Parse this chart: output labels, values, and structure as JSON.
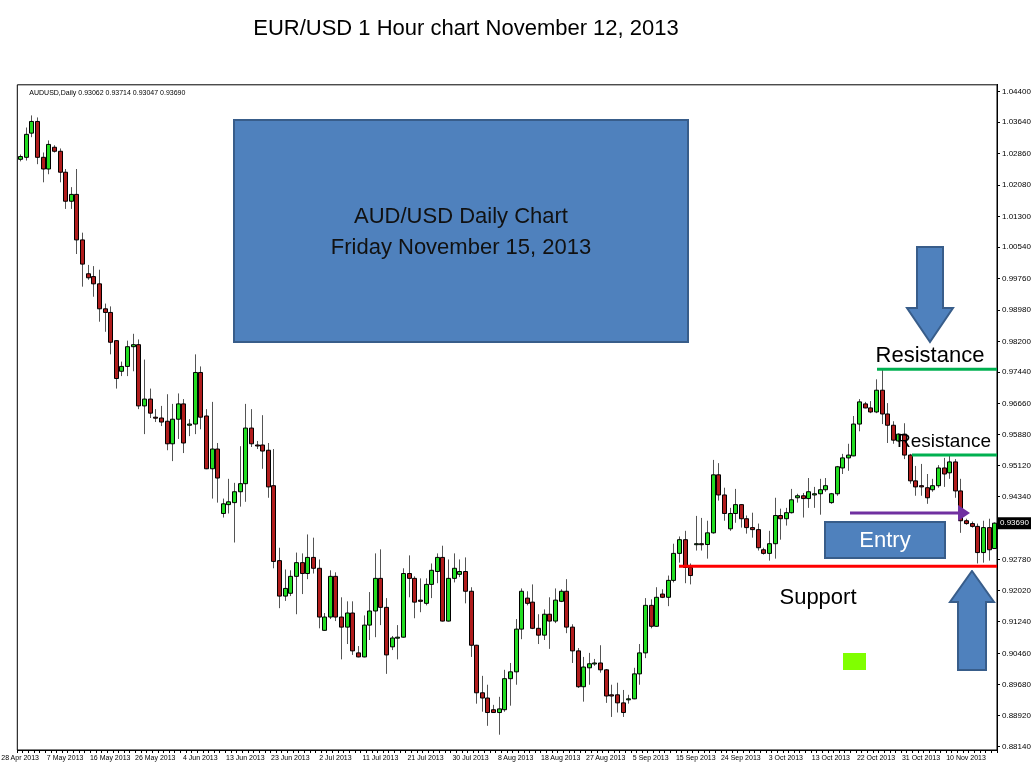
{
  "chart_data": {
    "type": "candlestick",
    "title": "EUR/USD 1 Hour chart November 12, 2013",
    "subtitle": "AUD/USD Daily Chart\nFriday November 15, 2013",
    "categories": [
      "28 Apr 2013",
      null,
      null,
      null,
      null,
      null,
      null,
      null,
      "7 May 2013",
      null,
      null,
      null,
      null,
      null,
      null,
      null,
      "16 May 2013",
      null,
      null,
      null,
      null,
      null,
      null,
      null,
      "26 May 2013",
      null,
      null,
      null,
      null,
      null,
      null,
      null,
      "4 Jun 2013",
      null,
      null,
      null,
      null,
      null,
      null,
      null,
      "13 Jun 2013",
      null,
      null,
      null,
      null,
      null,
      null,
      null,
      "23 Jun 2013",
      null,
      null,
      null,
      null,
      null,
      null,
      null,
      "2 Jul 2013",
      null,
      null,
      null,
      null,
      null,
      null,
      null,
      "11 Jul 2013",
      null,
      null,
      null,
      null,
      null,
      null,
      null,
      "21 Jul 2013",
      null,
      null,
      null,
      null,
      null,
      null,
      null,
      "30 Jul 2013",
      null,
      null,
      null,
      null,
      null,
      null,
      null,
      "8 Aug 2013",
      null,
      null,
      null,
      null,
      null,
      null,
      null,
      "18 Aug 2013",
      null,
      null,
      null,
      null,
      null,
      null,
      null,
      "27 Aug 2013",
      null,
      null,
      null,
      null,
      null,
      null,
      null,
      "5 Sep 2013",
      null,
      null,
      null,
      null,
      null,
      null,
      null,
      "15 Sep 2013",
      null,
      null,
      null,
      null,
      null,
      null,
      null,
      "24 Sep 2013",
      null,
      null,
      null,
      null,
      null,
      null,
      null,
      "3 Oct 2013",
      null,
      null,
      null,
      null,
      null,
      null,
      null,
      "13 Oct 2013",
      null,
      null,
      null,
      null,
      null,
      null,
      null,
      "22 Oct 2013",
      null,
      null,
      null,
      null,
      null,
      null,
      null,
      "31 Oct 2013",
      null,
      null,
      null,
      null,
      null,
      null,
      null,
      "10 Nov 2013",
      null,
      null,
      null,
      null,
      null
    ],
    "ohlc": [
      [
        1.0272,
        1.0284,
        1.0267,
        1.0279
      ],
      [
        1.0277,
        1.0351,
        1.0269,
        1.0334
      ],
      [
        1.0337,
        1.0381,
        1.0327,
        1.0366
      ],
      [
        1.0366,
        1.0376,
        1.026,
        1.0277
      ],
      [
        1.0277,
        1.0289,
        1.0215,
        1.0248
      ],
      [
        1.0248,
        1.0319,
        1.0235,
        1.0309
      ],
      [
        1.0302,
        1.0307,
        1.0289,
        1.0292
      ],
      [
        1.0292,
        1.0299,
        1.0215,
        1.024
      ],
      [
        1.024,
        1.0248,
        1.0149,
        1.0168
      ],
      [
        1.0168,
        1.0203,
        1.0149,
        1.0185
      ],
      [
        1.0185,
        1.0248,
        1.0037,
        1.0072
      ],
      [
        1.0072,
        1.009,
        0.9956,
        1.0012
      ],
      [
        0.9988,
        1.001,
        0.9973,
        0.9978
      ],
      [
        0.9981,
        1.0007,
        0.9931,
        0.9963
      ],
      [
        0.9963,
        0.9998,
        0.9869,
        0.9901
      ],
      [
        0.9901,
        0.9914,
        0.9844,
        0.9892
      ],
      [
        0.9892,
        0.9907,
        0.9788,
        0.9818
      ],
      [
        0.9822,
        0.9823,
        0.9703,
        0.9728
      ],
      [
        0.9746,
        0.977,
        0.9734,
        0.9758
      ],
      [
        0.9758,
        0.9822,
        0.9734,
        0.9807
      ],
      [
        0.9807,
        0.9839,
        0.9746,
        0.9812
      ],
      [
        0.9812,
        0.9825,
        0.9652,
        0.966
      ],
      [
        0.966,
        0.9775,
        0.959,
        0.9677
      ],
      [
        0.9677,
        0.9703,
        0.963,
        0.9642
      ],
      [
        0.9632,
        0.9652,
        0.962,
        0.963
      ],
      [
        0.963,
        0.966,
        0.961,
        0.962
      ],
      [
        0.9622,
        0.9689,
        0.955,
        0.9566
      ],
      [
        0.9566,
        0.9665,
        0.9523,
        0.9627
      ],
      [
        0.9627,
        0.9691,
        0.9578,
        0.9665
      ],
      [
        0.9665,
        0.9677,
        0.9543,
        0.9568
      ],
      [
        0.9612,
        0.9627,
        0.9585,
        0.9615
      ],
      [
        0.9615,
        0.9788,
        0.959,
        0.9743
      ],
      [
        0.9743,
        0.9758,
        0.9602,
        0.9632
      ],
      [
        0.9635,
        0.9652,
        0.9503,
        0.9504
      ],
      [
        0.9504,
        0.967,
        0.943,
        0.9553
      ],
      [
        0.9553,
        0.9568,
        0.942,
        0.9481
      ],
      [
        0.9393,
        0.943,
        0.9383,
        0.9417
      ],
      [
        0.9415,
        0.9479,
        0.9393,
        0.9422
      ],
      [
        0.942,
        0.9469,
        0.9321,
        0.9447
      ],
      [
        0.9447,
        0.956,
        0.941,
        0.9467
      ],
      [
        0.9467,
        0.9665,
        0.9422,
        0.9605
      ],
      [
        0.9605,
        0.9652,
        0.9558,
        0.9566
      ],
      [
        0.9563,
        0.9573,
        0.9553,
        0.9561
      ],
      [
        0.9563,
        0.9637,
        0.9504,
        0.9548
      ],
      [
        0.955,
        0.9568,
        0.9432,
        0.9459
      ],
      [
        0.9462,
        0.9553,
        0.9257,
        0.9274
      ],
      [
        0.9276,
        0.9308,
        0.9158,
        0.9188
      ],
      [
        0.9188,
        0.9254,
        0.9176,
        0.9207
      ],
      [
        0.9195,
        0.9252,
        0.9188,
        0.9237
      ],
      [
        0.9237,
        0.9296,
        0.9143,
        0.9271
      ],
      [
        0.9271,
        0.9294,
        0.9193,
        0.9244
      ],
      [
        0.9244,
        0.9341,
        0.923,
        0.9284
      ],
      [
        0.9284,
        0.9333,
        0.9244,
        0.9257
      ],
      [
        0.9257,
        0.9279,
        0.9108,
        0.9136
      ],
      [
        0.9103,
        0.9146,
        0.9102,
        0.9136
      ],
      [
        0.9136,
        0.9252,
        0.9131,
        0.9237
      ],
      [
        0.9237,
        0.9247,
        0.9126,
        0.9136
      ],
      [
        0.9136,
        0.9185,
        0.9031,
        0.9111
      ],
      [
        0.9111,
        0.9175,
        0.9069,
        0.9146
      ],
      [
        0.9146,
        0.9175,
        0.9042,
        0.9052
      ],
      [
        0.9047,
        0.9064,
        0.9036,
        0.9037
      ],
      [
        0.9037,
        0.914,
        0.9036,
        0.9116
      ],
      [
        0.9116,
        0.9198,
        0.9079,
        0.9151
      ],
      [
        0.9151,
        0.9294,
        0.9086,
        0.9232
      ],
      [
        0.9232,
        0.9304,
        0.9116,
        0.916
      ],
      [
        0.916,
        0.9183,
        0.8995,
        0.9042
      ],
      [
        0.9062,
        0.9089,
        0.9054,
        0.9084
      ],
      [
        0.9084,
        0.9116,
        0.9031,
        0.9086
      ],
      [
        0.9086,
        0.9257,
        0.9085,
        0.9244
      ],
      [
        0.9244,
        0.9289,
        0.9185,
        0.9232
      ],
      [
        0.9232,
        0.9237,
        0.9133,
        0.9173
      ],
      [
        0.9178,
        0.9232,
        0.9148,
        0.9175
      ],
      [
        0.917,
        0.9232,
        0.9165,
        0.9217
      ],
      [
        0.9217,
        0.9269,
        0.9183,
        0.9252
      ],
      [
        0.9249,
        0.9294,
        0.922,
        0.9284
      ],
      [
        0.9284,
        0.9313,
        0.9125,
        0.9126
      ],
      [
        0.9126,
        0.9279,
        0.9125,
        0.9232
      ],
      [
        0.9232,
        0.9294,
        0.9222,
        0.9257
      ],
      [
        0.9242,
        0.9279,
        0.9235,
        0.9249
      ],
      [
        0.9249,
        0.9284,
        0.917,
        0.92
      ],
      [
        0.92,
        0.921,
        0.9037,
        0.9066
      ],
      [
        0.9066,
        0.9067,
        0.8921,
        0.8948
      ],
      [
        0.8948,
        0.899,
        0.8901,
        0.8935
      ],
      [
        0.8935,
        0.8968,
        0.8866,
        0.8899
      ],
      [
        0.8906,
        0.8918,
        0.8898,
        0.8899
      ],
      [
        0.8899,
        0.8938,
        0.8844,
        0.8908
      ],
      [
        0.8906,
        0.9005,
        0.8901,
        0.8983
      ],
      [
        0.8983,
        0.9022,
        0.8916,
        0.9
      ],
      [
        0.9,
        0.9131,
        0.8968,
        0.9106
      ],
      [
        0.9106,
        0.9207,
        0.9081,
        0.92
      ],
      [
        0.9183,
        0.92,
        0.9165,
        0.917
      ],
      [
        0.9173,
        0.9217,
        0.9106,
        0.9108
      ],
      [
        0.9108,
        0.9143,
        0.9069,
        0.9091
      ],
      [
        0.9091,
        0.9155,
        0.9079,
        0.9143
      ],
      [
        0.9143,
        0.9185,
        0.9057,
        0.9126
      ],
      [
        0.9126,
        0.9207,
        0.9121,
        0.9178
      ],
      [
        0.9175,
        0.9205,
        0.9173,
        0.92
      ],
      [
        0.92,
        0.923,
        0.9096,
        0.9111
      ],
      [
        0.9111,
        0.9118,
        0.9022,
        0.9052
      ],
      [
        0.9052,
        0.9059,
        0.896,
        0.8963
      ],
      [
        0.8963,
        0.9037,
        0.8926,
        0.9012
      ],
      [
        0.901,
        0.9047,
        0.8968,
        0.902
      ],
      [
        0.902,
        0.9032,
        0.9015,
        0.9022
      ],
      [
        0.9022,
        0.9066,
        0.8998,
        0.9005
      ],
      [
        0.9005,
        0.9007,
        0.8923,
        0.894
      ],
      [
        0.8943,
        0.8968,
        0.8888,
        0.894
      ],
      [
        0.8943,
        0.8973,
        0.8899,
        0.8923
      ],
      [
        0.8923,
        0.8955,
        0.8888,
        0.8899
      ],
      [
        0.8931,
        0.8943,
        0.8921,
        0.8933
      ],
      [
        0.8933,
        0.901,
        0.8932,
        0.8995
      ],
      [
        0.8995,
        0.9069,
        0.8968,
        0.9047
      ],
      [
        0.9047,
        0.9183,
        0.9034,
        0.9165
      ],
      [
        0.9165,
        0.918,
        0.9108,
        0.9113
      ],
      [
        0.9113,
        0.921,
        0.9112,
        0.9185
      ],
      [
        0.9193,
        0.9205,
        0.9183,
        0.9185
      ],
      [
        0.9185,
        0.9239,
        0.9163,
        0.9227
      ],
      [
        0.9227,
        0.9318,
        0.9222,
        0.9294
      ],
      [
        0.9294,
        0.9336,
        0.9271,
        0.9328
      ],
      [
        0.9328,
        0.935,
        0.922,
        0.9259
      ],
      [
        0.9259,
        0.9269,
        0.9217,
        0.9239
      ],
      [
        0.9316,
        0.9387,
        0.9301,
        0.9318
      ],
      [
        0.9318,
        0.9382,
        0.9301,
        0.9316
      ],
      [
        0.9316,
        0.9375,
        0.9281,
        0.9345
      ],
      [
        0.9345,
        0.9526,
        0.9343,
        0.9489
      ],
      [
        0.9489,
        0.9518,
        0.9425,
        0.9439
      ],
      [
        0.9439,
        0.9457,
        0.9375,
        0.9393
      ],
      [
        0.9355,
        0.9407,
        0.935,
        0.9393
      ],
      [
        0.9393,
        0.9454,
        0.937,
        0.9415
      ],
      [
        0.9415,
        0.9416,
        0.9358,
        0.938
      ],
      [
        0.938,
        0.9388,
        0.9343,
        0.9358
      ],
      [
        0.9358,
        0.9395,
        0.9333,
        0.9353
      ],
      [
        0.9353,
        0.9368,
        0.9301,
        0.9308
      ],
      [
        0.9303,
        0.9308,
        0.9291,
        0.9294
      ],
      [
        0.9294,
        0.935,
        0.9276,
        0.9318
      ],
      [
        0.9318,
        0.9432,
        0.9281,
        0.9388
      ],
      [
        0.9388,
        0.9405,
        0.9328,
        0.938
      ],
      [
        0.938,
        0.9407,
        0.9363,
        0.9395
      ],
      [
        0.9395,
        0.9454,
        0.9393,
        0.9427
      ],
      [
        0.9432,
        0.9442,
        0.942,
        0.9437
      ],
      [
        0.9437,
        0.9444,
        0.9383,
        0.943
      ],
      [
        0.943,
        0.9481,
        0.9407,
        0.9447
      ],
      [
        0.9439,
        0.9459,
        0.9407,
        0.9442
      ],
      [
        0.9442,
        0.9479,
        0.939,
        0.9452
      ],
      [
        0.9452,
        0.9481,
        0.9447,
        0.9462
      ],
      [
        0.942,
        0.9444,
        0.9417,
        0.9442
      ],
      [
        0.9442,
        0.9511,
        0.9437,
        0.9509
      ],
      [
        0.9506,
        0.9541,
        0.9491,
        0.9531
      ],
      [
        0.9531,
        0.9566,
        0.9499,
        0.9538
      ],
      [
        0.9536,
        0.9635,
        0.9535,
        0.9615
      ],
      [
        0.9615,
        0.9677,
        0.9597,
        0.967
      ],
      [
        0.9665,
        0.967,
        0.9654,
        0.9655
      ],
      [
        0.9655,
        0.9672,
        0.9642,
        0.9645
      ],
      [
        0.9645,
        0.9726,
        0.9642,
        0.9699
      ],
      [
        0.9699,
        0.9753,
        0.9615,
        0.964
      ],
      [
        0.964,
        0.9667,
        0.9568,
        0.9612
      ],
      [
        0.9612,
        0.9622,
        0.9566,
        0.9575
      ],
      [
        0.9573,
        0.9592,
        0.957,
        0.959
      ],
      [
        0.959,
        0.9617,
        0.9528,
        0.9538
      ],
      [
        0.9538,
        0.9541,
        0.9467,
        0.9474
      ],
      [
        0.9474,
        0.9511,
        0.9437,
        0.9459
      ],
      [
        0.9462,
        0.9516,
        0.9437,
        0.9459
      ],
      [
        0.9457,
        0.9491,
        0.9417,
        0.9432
      ],
      [
        0.9452,
        0.9479,
        0.9447,
        0.9462
      ],
      [
        0.9462,
        0.9513,
        0.9457,
        0.9506
      ],
      [
        0.9506,
        0.9531,
        0.9459,
        0.9491
      ],
      [
        0.9494,
        0.9538,
        0.9479,
        0.9521
      ],
      [
        0.9521,
        0.9528,
        0.9432,
        0.9449
      ],
      [
        0.9449,
        0.9479,
        0.9345,
        0.9375
      ],
      [
        0.9375,
        0.938,
        0.9365,
        0.9368
      ],
      [
        0.9368,
        0.9373,
        0.9358,
        0.9361
      ],
      [
        0.9361,
        0.9368,
        0.9269,
        0.9296
      ],
      [
        0.9296,
        0.9375,
        0.9271,
        0.9358
      ],
      [
        0.9358,
        0.938,
        0.9276,
        0.9303
      ],
      [
        0.9306,
        0.9371,
        0.9305,
        0.9369
      ]
    ],
    "ylim": [
      0.8806,
      1.0457
    ],
    "yticks": [
      {
        "value": 1.044,
        "label": "1.04400"
      },
      {
        "value": 1.0364,
        "label": "1.03640"
      },
      {
        "value": 1.0286,
        "label": "1.02860"
      },
      {
        "value": 1.0208,
        "label": "1.02080"
      },
      {
        "value": 1.013,
        "label": "1.01300"
      },
      {
        "value": 1.0054,
        "label": "1.00540"
      },
      {
        "value": 0.9976,
        "label": "0.99760"
      },
      {
        "value": 0.9898,
        "label": "0.98980"
      },
      {
        "value": 0.982,
        "label": "0.98200"
      },
      {
        "value": 0.9744,
        "label": "0.97440"
      },
      {
        "value": 0.9666,
        "label": "0.96660"
      },
      {
        "value": 0.9588,
        "label": "0.95880"
      },
      {
        "value": 0.9512,
        "label": "0.95120"
      },
      {
        "value": 0.9434,
        "label": "0.94340"
      },
      {
        "value": 0.9278,
        "label": "0.92780"
      },
      {
        "value": 0.9202,
        "label": "0.92020"
      },
      {
        "value": 0.9124,
        "label": "0.91240"
      },
      {
        "value": 0.9046,
        "label": "0.90460"
      },
      {
        "value": 0.8968,
        "label": "0.89680"
      },
      {
        "value": 0.8892,
        "label": "0.88920"
      },
      {
        "value": 0.8814,
        "label": "0.88140"
      }
    ],
    "ref_lines": [
      {
        "axis": "y",
        "value": 0.9751,
        "label": "Resistance",
        "color": "#00b050"
      },
      {
        "axis": "y",
        "value": 0.9538,
        "label": "Resistance",
        "color": "#00b050"
      },
      {
        "axis": "y",
        "value": 0.9262,
        "label": "Support",
        "color": "#ff0000"
      }
    ],
    "annotations": [
      "AUDUSD,Daily 0.93062 0.93714 0.93047 0.93690",
      {
        "text": "0.93690",
        "y": 0.9369
      },
      "Entry"
    ]
  }
}
